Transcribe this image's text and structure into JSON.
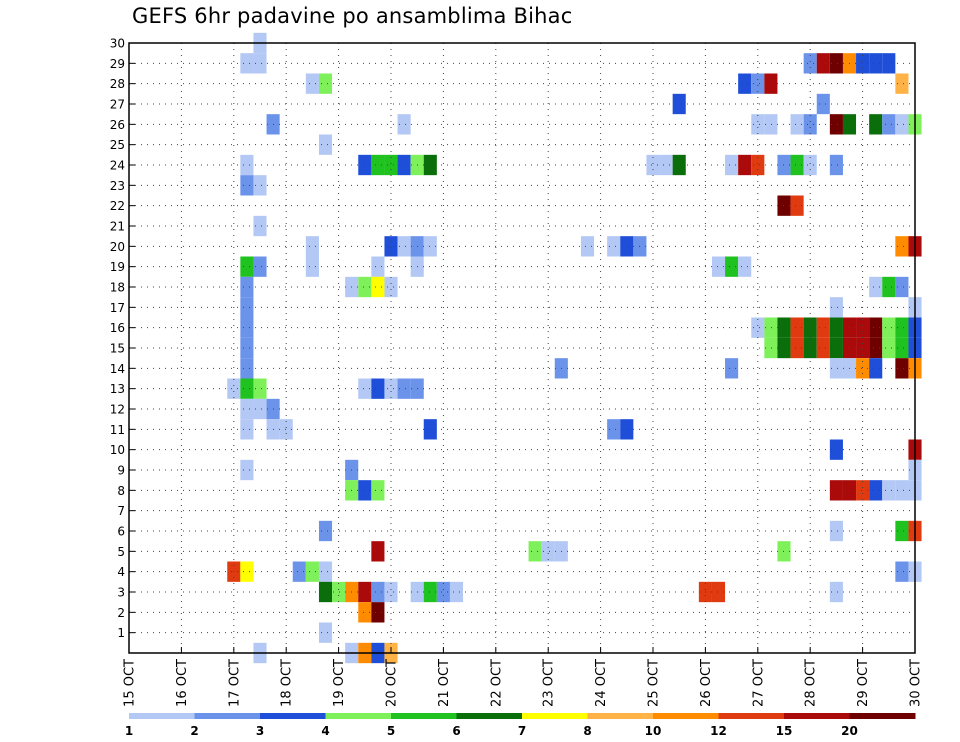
{
  "chart_data": {
    "type": "heatmap",
    "title": "GEFS 6hr padavine po ansamblima Bihac",
    "y_ticks": [
      "1",
      "2",
      "3",
      "4",
      "5",
      "6",
      "7",
      "8",
      "9",
      "10",
      "11",
      "12",
      "13",
      "14",
      "15",
      "16",
      "17",
      "18",
      "19",
      "20",
      "21",
      "22",
      "23",
      "24",
      "25",
      "26",
      "27",
      "28",
      "29",
      "30"
    ],
    "x_ticks": [
      "15 OCT",
      "16 OCT",
      "17 OCT",
      "18 OCT",
      "19 OCT",
      "20 OCT",
      "21 OCT",
      "22 OCT",
      "23 OCT",
      "24 OCT",
      "25 OCT",
      "26 OCT",
      "27 OCT",
      "28 OCT",
      "29 OCT",
      "30 OCT"
    ],
    "x_range_hours": [
      0,
      360
    ],
    "y_range_members": [
      0,
      30
    ],
    "grid": true,
    "legend_position": "bottom",
    "legend": {
      "colors": [
        "#b3c8f5",
        "#6b93ea",
        "#1f4fd8",
        "#7ef05a",
        "#1fc21f",
        "#0a6e0a",
        "#ffff00",
        "#ffb347",
        "#ff8c00",
        "#e03a10",
        "#aa0a0a",
        "#6e0000"
      ],
      "labels": [
        "1",
        "2",
        "3",
        "4",
        "5",
        "6",
        "7",
        "8",
        "10",
        "12",
        "15",
        "20"
      ]
    },
    "cells": [
      [
        30,
        17.5,
        1
      ],
      [
        29,
        17.25,
        1
      ],
      [
        29,
        17.5,
        1
      ],
      [
        29,
        28,
        2
      ],
      [
        29,
        28.25,
        11
      ],
      [
        29,
        28.5,
        12
      ],
      [
        29,
        28.75,
        9
      ],
      [
        29,
        29,
        3
      ],
      [
        29,
        29.25,
        3
      ],
      [
        29,
        29.5,
        3
      ],
      [
        28,
        18.5,
        1
      ],
      [
        28,
        18.75,
        4
      ],
      [
        28,
        26.75,
        3
      ],
      [
        28,
        27,
        2
      ],
      [
        28,
        27.25,
        11
      ],
      [
        28,
        29.75,
        8
      ],
      [
        27,
        25.5,
        3
      ],
      [
        27,
        28.25,
        2
      ],
      [
        26,
        17.75,
        2
      ],
      [
        26,
        20.25,
        1
      ],
      [
        26,
        27,
        1
      ],
      [
        26,
        27.25,
        1
      ],
      [
        26,
        27.75,
        1
      ],
      [
        26,
        28,
        2
      ],
      [
        26,
        28.5,
        12
      ],
      [
        26,
        28.75,
        6
      ],
      [
        26,
        29.25,
        6
      ],
      [
        26,
        29.5,
        2
      ],
      [
        26,
        29.75,
        1
      ],
      [
        26,
        30,
        4
      ],
      [
        25,
        18.75,
        1
      ],
      [
        24,
        17.25,
        1
      ],
      [
        24,
        19.5,
        3
      ],
      [
        24,
        19.75,
        5
      ],
      [
        24,
        20,
        5
      ],
      [
        24,
        20.25,
        3
      ],
      [
        24,
        20.5,
        4
      ],
      [
        24,
        20.75,
        6
      ],
      [
        24,
        25,
        1
      ],
      [
        24,
        25.25,
        1
      ],
      [
        24,
        25.5,
        6
      ],
      [
        24,
        26.5,
        1
      ],
      [
        24,
        26.75,
        11
      ],
      [
        24,
        27,
        10
      ],
      [
        24,
        27.5,
        2
      ],
      [
        24,
        27.75,
        5
      ],
      [
        24,
        28,
        1
      ],
      [
        24,
        28.5,
        2
      ],
      [
        23,
        17.25,
        2
      ],
      [
        23,
        17.5,
        1
      ],
      [
        22,
        27.5,
        12
      ],
      [
        22,
        27.75,
        10
      ],
      [
        21,
        17.5,
        1
      ],
      [
        20,
        18.5,
        1
      ],
      [
        20,
        20,
        3
      ],
      [
        20,
        20.25,
        1
      ],
      [
        20,
        20.5,
        2
      ],
      [
        20,
        20.75,
        1
      ],
      [
        20,
        23.75,
        1
      ],
      [
        20,
        24.25,
        1
      ],
      [
        20,
        24.5,
        3
      ],
      [
        20,
        24.75,
        2
      ],
      [
        20,
        29.75,
        9
      ],
      [
        20,
        30,
        11
      ],
      [
        19,
        17.25,
        5
      ],
      [
        19,
        17.5,
        2
      ],
      [
        19,
        18.5,
        1
      ],
      [
        19,
        19.75,
        1
      ],
      [
        19,
        20.5,
        1
      ],
      [
        19,
        26.25,
        1
      ],
      [
        19,
        26.5,
        5
      ],
      [
        19,
        26.75,
        1
      ],
      [
        18,
        17.25,
        2
      ],
      [
        18,
        19.25,
        1
      ],
      [
        18,
        19.5,
        4
      ],
      [
        18,
        19.75,
        7
      ],
      [
        18,
        20,
        1
      ],
      [
        18,
        29.25,
        1
      ],
      [
        18,
        29.5,
        5
      ],
      [
        18,
        29.75,
        2
      ],
      [
        17,
        17.25,
        2
      ],
      [
        17,
        28.5,
        1
      ],
      [
        17,
        30,
        1
      ],
      [
        16,
        17.25,
        2
      ],
      [
        16,
        27,
        1
      ],
      [
        16,
        27.25,
        4
      ],
      [
        16,
        27.5,
        6
      ],
      [
        16,
        27.75,
        10
      ],
      [
        16,
        28,
        6
      ],
      [
        16,
        28.25,
        10
      ],
      [
        16,
        28.5,
        6
      ],
      [
        16,
        28.75,
        11
      ],
      [
        16,
        29,
        11
      ],
      [
        16,
        29.25,
        12
      ],
      [
        16,
        29.5,
        4
      ],
      [
        16,
        29.75,
        5
      ],
      [
        16,
        30,
        3
      ],
      [
        15,
        17.25,
        2
      ],
      [
        15,
        27.25,
        4
      ],
      [
        15,
        27.5,
        6
      ],
      [
        15,
        27.75,
        10
      ],
      [
        15,
        28,
        6
      ],
      [
        15,
        28.25,
        10
      ],
      [
        15,
        28.5,
        6
      ],
      [
        15,
        28.75,
        11
      ],
      [
        15,
        29,
        11
      ],
      [
        15,
        29.25,
        12
      ],
      [
        15,
        29.5,
        4
      ],
      [
        15,
        29.75,
        5
      ],
      [
        15,
        30,
        3
      ],
      [
        14,
        17.25,
        2
      ],
      [
        14,
        23.25,
        2
      ],
      [
        14,
        26.5,
        2
      ],
      [
        14,
        28.5,
        1
      ],
      [
        14,
        28.75,
        1
      ],
      [
        14,
        29,
        9
      ],
      [
        14,
        29.25,
        3
      ],
      [
        14,
        29.75,
        12
      ],
      [
        14,
        30,
        9
      ],
      [
        13,
        17,
        1
      ],
      [
        13,
        17.25,
        5
      ],
      [
        13,
        17.5,
        4
      ],
      [
        13,
        19.5,
        1
      ],
      [
        13,
        19.75,
        3
      ],
      [
        13,
        20,
        1
      ],
      [
        13,
        20.25,
        2
      ],
      [
        13,
        20.5,
        2
      ],
      [
        12,
        17.25,
        1
      ],
      [
        12,
        17.5,
        1
      ],
      [
        12,
        17.75,
        2
      ],
      [
        11,
        17.25,
        1
      ],
      [
        11,
        17.75,
        1
      ],
      [
        11,
        18,
        1
      ],
      [
        11,
        20.75,
        3
      ],
      [
        11,
        24.25,
        2
      ],
      [
        11,
        24.5,
        3
      ],
      [
        10,
        28.5,
        3
      ],
      [
        10,
        30,
        11
      ],
      [
        9,
        17.25,
        1
      ],
      [
        9,
        19.25,
        2
      ],
      [
        9,
        30,
        1
      ],
      [
        8,
        19.25,
        4
      ],
      [
        8,
        19.5,
        3
      ],
      [
        8,
        19.75,
        4
      ],
      [
        8,
        28.5,
        11
      ],
      [
        8,
        28.75,
        11
      ],
      [
        8,
        29,
        10
      ],
      [
        8,
        29.25,
        3
      ],
      [
        8,
        29.5,
        1
      ],
      [
        8,
        29.75,
        1
      ],
      [
        8,
        30,
        1
      ],
      [
        6,
        18.75,
        2
      ],
      [
        6,
        28.5,
        1
      ],
      [
        6,
        29.75,
        5
      ],
      [
        6,
        30,
        10
      ],
      [
        5,
        19.75,
        11
      ],
      [
        5,
        22.75,
        4
      ],
      [
        5,
        23,
        1
      ],
      [
        5,
        23.25,
        1
      ],
      [
        5,
        27.5,
        4
      ],
      [
        4,
        17,
        10
      ],
      [
        4,
        17.25,
        7
      ],
      [
        4,
        18.25,
        2
      ],
      [
        4,
        18.5,
        4
      ],
      [
        4,
        18.75,
        1
      ],
      [
        4,
        29.75,
        2
      ],
      [
        4,
        30,
        1
      ],
      [
        3,
        18.75,
        6
      ],
      [
        3,
        19,
        4
      ],
      [
        3,
        19.25,
        9
      ],
      [
        3,
        19.5,
        11
      ],
      [
        3,
        19.75,
        2
      ],
      [
        3,
        20,
        1
      ],
      [
        3,
        20.5,
        1
      ],
      [
        3,
        20.75,
        5
      ],
      [
        3,
        21,
        2
      ],
      [
        3,
        21.25,
        1
      ],
      [
        3,
        26,
        10
      ],
      [
        3,
        26.25,
        10
      ],
      [
        3,
        28.5,
        1
      ],
      [
        2,
        19.5,
        9
      ],
      [
        2,
        19.75,
        12
      ],
      [
        1,
        18.75,
        1
      ],
      [
        0,
        17.5,
        1
      ],
      [
        0,
        19.25,
        1
      ],
      [
        0,
        19.5,
        9
      ],
      [
        0,
        19.75,
        3
      ],
      [
        0,
        20,
        8
      ]
    ]
  }
}
